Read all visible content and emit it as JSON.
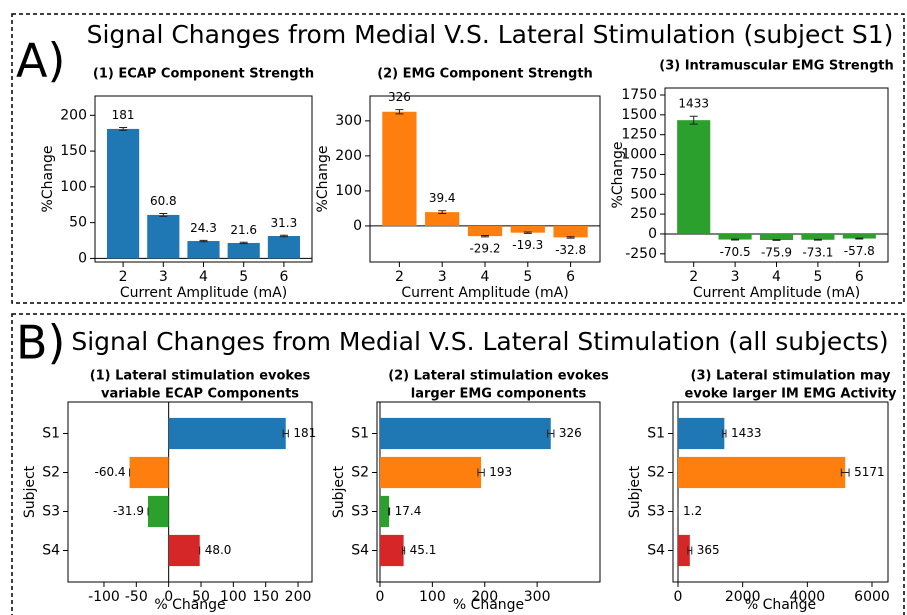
{
  "panels": [
    {
      "letter": "A)",
      "title": "Signal Changes from Medial V.S. Lateral Stimulation (subject S1)"
    },
    {
      "letter": "B)",
      "title": "Signal Changes from Medial V.S. Lateral Stimulation (all subjects)"
    }
  ],
  "chart_data": [
    {
      "type": "bar",
      "title": [
        "(1) ECAP Component Strength"
      ],
      "xlabel": "Current Amplitude (mA)",
      "ylabel": "%Change",
      "categories": [
        "2",
        "3",
        "4",
        "5",
        "6"
      ],
      "values": [
        181,
        60.8,
        24.3,
        21.6,
        31.3
      ],
      "errors": [
        2,
        2,
        1,
        1,
        1
      ],
      "color": "#1f77b4",
      "ylim": [
        -5,
        227
      ],
      "yticks": [
        0,
        50,
        100,
        150,
        200
      ]
    },
    {
      "type": "bar",
      "title": [
        "(2) EMG Component Strength"
      ],
      "xlabel": "Current Amplitude (mA)",
      "ylabel": "%Change",
      "categories": [
        "2",
        "3",
        "4",
        "5",
        "6"
      ],
      "values": [
        326,
        39.4,
        -29.2,
        -19.3,
        -32.8
      ],
      "errors": [
        6,
        4,
        2,
        2,
        2
      ],
      "color": "#ff7f0e",
      "ylim": [
        -103,
        371
      ],
      "yticks": [
        0,
        100,
        200,
        300
      ]
    },
    {
      "type": "bar",
      "title": [
        "(3) Intramuscular EMG Strength"
      ],
      "xlabel": "Current Amplitude (mA)",
      "ylabel": "%Change",
      "categories": [
        "2",
        "3",
        "4",
        "5",
        "6"
      ],
      "values": [
        1433,
        -70.5,
        -75.9,
        -73.1,
        -57.8
      ],
      "errors": [
        50,
        5,
        5,
        5,
        5
      ],
      "color": "#2ca02c",
      "ylim": [
        -353,
        1838
      ],
      "yticks": [
        -250,
        0,
        250,
        500,
        750,
        1000,
        1250,
        1500,
        1750
      ]
    },
    {
      "type": "barh",
      "title": [
        "(1) Lateral stimulation evokes",
        "variable ECAP Components"
      ],
      "xlabel": "% Change",
      "ylabel": "Subject",
      "categories": [
        "S1",
        "S2",
        "S3",
        "S4"
      ],
      "values": [
        181,
        -60.4,
        -31.9,
        48.0
      ],
      "value_labels": [
        "181",
        "-60.4",
        "-31.9",
        "48.0"
      ],
      "errors": [
        4,
        0,
        0,
        0
      ],
      "colors": [
        "#1f77b4",
        "#ff7f0e",
        "#2ca02c",
        "#d62728"
      ],
      "xlim": [
        -155.6,
        221.6
      ],
      "xticks": [
        -100,
        -50,
        0,
        50,
        100,
        150,
        200
      ]
    },
    {
      "type": "barh",
      "title": [
        "(2) Lateral stimulation evokes",
        "larger EMG components"
      ],
      "xlabel": "% Change",
      "ylabel": "Subject",
      "categories": [
        "S1",
        "S2",
        "S3",
        "S4"
      ],
      "values": [
        326,
        193,
        17.4,
        45.1
      ],
      "errors": [
        6,
        6,
        1,
        2
      ],
      "colors": [
        "#1f77b4",
        "#ff7f0e",
        "#2ca02c",
        "#d62728"
      ],
      "xlim": [
        -5.7,
        420
      ],
      "xticks": [
        0,
        100,
        200,
        300
      ]
    },
    {
      "type": "barh",
      "title": [
        "(3) Lateral stimulation may",
        "evoke larger IM EMG Activity"
      ],
      "xlabel": "% Change",
      "ylabel": "Subject",
      "categories": [
        "S1",
        "S2",
        "S3",
        "S4"
      ],
      "values": [
        1433,
        5171,
        1.2,
        365
      ],
      "errors": [
        50,
        120,
        0,
        60
      ],
      "colors": [
        "#1f77b4",
        "#ff7f0e",
        "#2ca02c",
        "#d62728"
      ],
      "xlim": [
        -155,
        6495
      ],
      "xticks": [
        0,
        2000,
        4000,
        6000
      ]
    }
  ]
}
